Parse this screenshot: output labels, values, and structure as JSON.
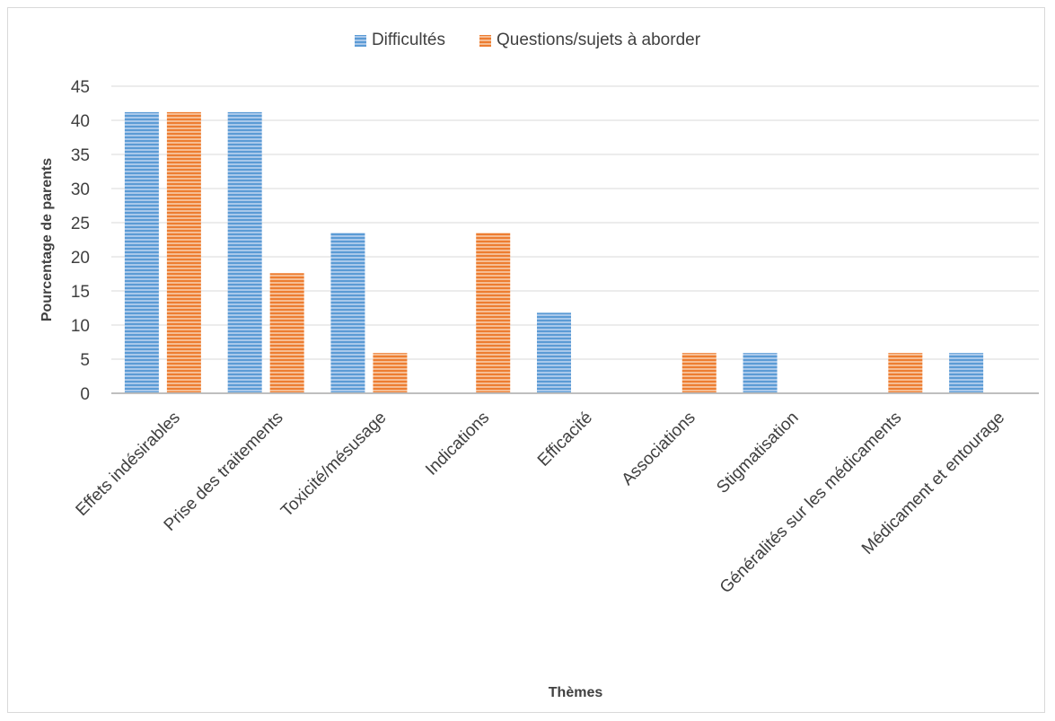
{
  "chart_data": {
    "type": "bar",
    "categories": [
      "Effets indésirables",
      "Prise des traitements",
      "Toxicité/mésusage",
      "Indications",
      "Efficacité",
      "Associations",
      "Stigmatisation",
      "Généralités sur les médicaments",
      "Médicament et entourage"
    ],
    "series": [
      {
        "name": "Difficultés",
        "values": [
          41.2,
          41.2,
          23.5,
          0,
          11.8,
          0,
          5.9,
          0,
          5.9
        ]
      },
      {
        "name": "Questions/sujets à aborder",
        "values": [
          41.2,
          17.6,
          5.9,
          23.5,
          0,
          5.9,
          0,
          5.9,
          0
        ]
      }
    ],
    "xlabel": "Thèmes",
    "ylabel": "Pourcentage de parents",
    "ylim": [
      0,
      45
    ],
    "yticks": [
      0,
      5,
      10,
      15,
      20,
      25,
      30,
      35,
      40,
      45
    ],
    "grid": true,
    "legend_position": "top-center",
    "colors": [
      "#5B9BD5",
      "#ED7D31"
    ],
    "stripe_colors": [
      "#A9C8EA",
      "#F6BD93"
    ]
  }
}
